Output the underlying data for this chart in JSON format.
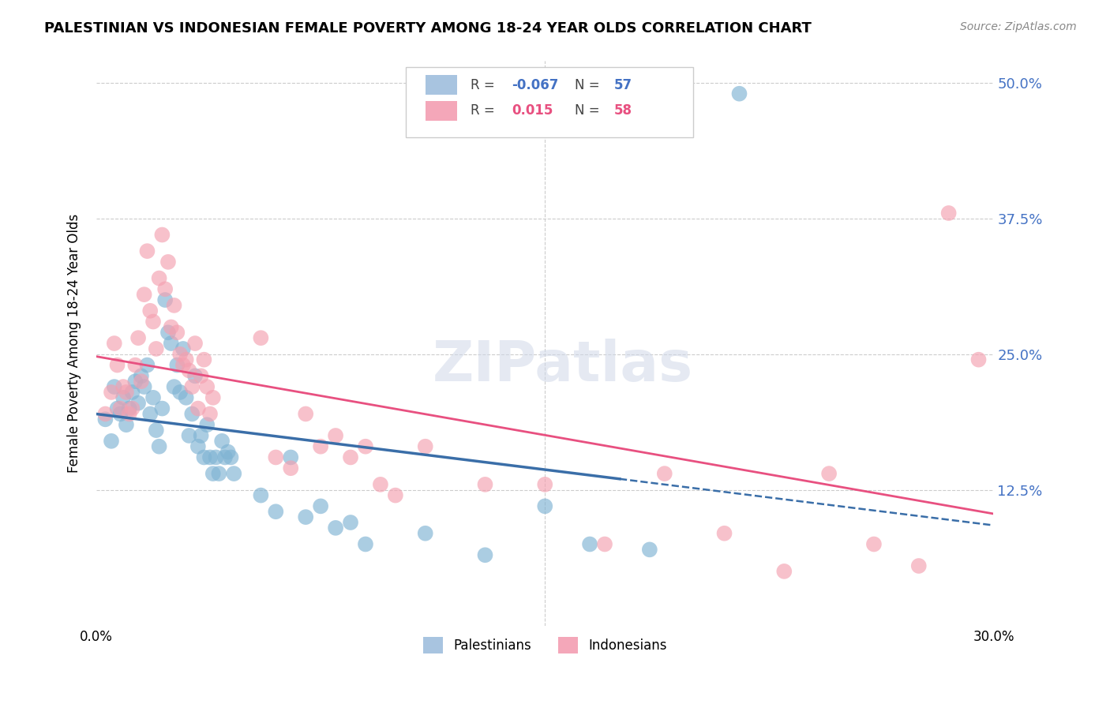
{
  "title": "PALESTINIAN VS INDONESIAN FEMALE POVERTY AMONG 18-24 YEAR OLDS CORRELATION CHART",
  "source": "Source: ZipAtlas.com",
  "ylabel": "Female Poverty Among 18-24 Year Olds",
  "xlim": [
    0.0,
    0.3
  ],
  "ylim": [
    0.0,
    0.52
  ],
  "yticks": [
    0.0,
    0.125,
    0.25,
    0.375,
    0.5
  ],
  "ytick_labels": [
    "",
    "12.5%",
    "25.0%",
    "37.5%",
    "50.0%"
  ],
  "palestinians_color": "#7fb3d3",
  "indonesians_color": "#f4a0b0",
  "trendline_pal_color": "#3a6ea8",
  "trendline_ind_color": "#e85080",
  "watermark": "ZIPatlas",
  "watermark_color": "#d0d8e8",
  "palestinians_x": [
    0.003,
    0.005,
    0.006,
    0.007,
    0.008,
    0.009,
    0.01,
    0.011,
    0.012,
    0.013,
    0.014,
    0.015,
    0.016,
    0.017,
    0.018,
    0.019,
    0.02,
    0.021,
    0.022,
    0.023,
    0.024,
    0.025,
    0.026,
    0.027,
    0.028,
    0.029,
    0.03,
    0.031,
    0.032,
    0.033,
    0.034,
    0.035,
    0.036,
    0.037,
    0.038,
    0.039,
    0.04,
    0.041,
    0.042,
    0.043,
    0.044,
    0.045,
    0.046,
    0.055,
    0.06,
    0.065,
    0.07,
    0.075,
    0.08,
    0.085,
    0.09,
    0.11,
    0.13,
    0.15,
    0.165,
    0.185,
    0.215
  ],
  "palestinians_y": [
    0.19,
    0.17,
    0.22,
    0.2,
    0.195,
    0.21,
    0.185,
    0.2,
    0.215,
    0.225,
    0.205,
    0.23,
    0.22,
    0.24,
    0.195,
    0.21,
    0.18,
    0.165,
    0.2,
    0.3,
    0.27,
    0.26,
    0.22,
    0.24,
    0.215,
    0.255,
    0.21,
    0.175,
    0.195,
    0.23,
    0.165,
    0.175,
    0.155,
    0.185,
    0.155,
    0.14,
    0.155,
    0.14,
    0.17,
    0.155,
    0.16,
    0.155,
    0.14,
    0.12,
    0.105,
    0.155,
    0.1,
    0.11,
    0.09,
    0.095,
    0.075,
    0.085,
    0.065,
    0.11,
    0.075,
    0.07,
    0.49
  ],
  "indonesians_x": [
    0.003,
    0.005,
    0.006,
    0.007,
    0.008,
    0.009,
    0.01,
    0.011,
    0.012,
    0.013,
    0.014,
    0.015,
    0.016,
    0.017,
    0.018,
    0.019,
    0.02,
    0.021,
    0.022,
    0.023,
    0.024,
    0.025,
    0.026,
    0.027,
    0.028,
    0.029,
    0.03,
    0.031,
    0.032,
    0.033,
    0.034,
    0.035,
    0.036,
    0.037,
    0.038,
    0.039,
    0.055,
    0.06,
    0.065,
    0.07,
    0.075,
    0.08,
    0.085,
    0.09,
    0.095,
    0.1,
    0.11,
    0.13,
    0.15,
    0.17,
    0.19,
    0.21,
    0.23,
    0.245,
    0.26,
    0.275,
    0.285,
    0.295
  ],
  "indonesians_y": [
    0.195,
    0.215,
    0.26,
    0.24,
    0.2,
    0.22,
    0.215,
    0.195,
    0.2,
    0.24,
    0.265,
    0.225,
    0.305,
    0.345,
    0.29,
    0.28,
    0.255,
    0.32,
    0.36,
    0.31,
    0.335,
    0.275,
    0.295,
    0.27,
    0.25,
    0.24,
    0.245,
    0.235,
    0.22,
    0.26,
    0.2,
    0.23,
    0.245,
    0.22,
    0.195,
    0.21,
    0.265,
    0.155,
    0.145,
    0.195,
    0.165,
    0.175,
    0.155,
    0.165,
    0.13,
    0.12,
    0.165,
    0.13,
    0.13,
    0.075,
    0.14,
    0.085,
    0.05,
    0.14,
    0.075,
    0.055,
    0.38,
    0.245
  ]
}
